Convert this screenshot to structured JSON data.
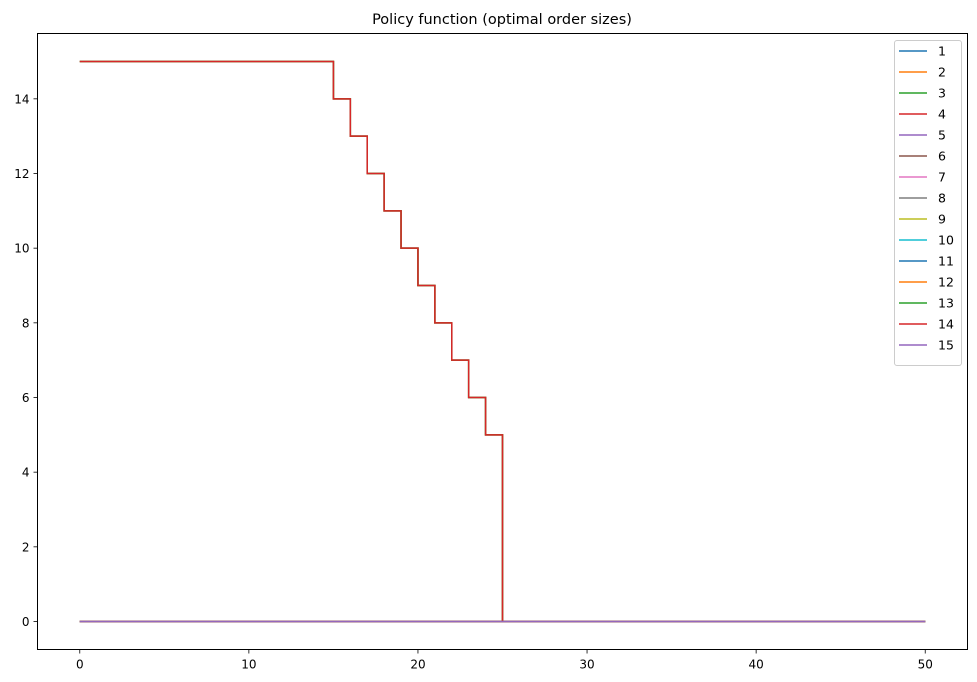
{
  "chart_data": {
    "type": "line",
    "title": "Policy function (optimal order sizes)",
    "xlabel": "",
    "ylabel": "",
    "xlim": [
      -2.5,
      52.5
    ],
    "ylim": [
      -0.75,
      15.75
    ],
    "xticks": [
      0,
      10,
      20,
      30,
      40,
      50
    ],
    "yticks": [
      0,
      2,
      4,
      6,
      8,
      10,
      12,
      14
    ],
    "step": "post",
    "grid": false,
    "legend_position": "top-right",
    "x": [
      0,
      1,
      2,
      3,
      4,
      5,
      6,
      7,
      8,
      9,
      10,
      11,
      12,
      13,
      14,
      15,
      16,
      17,
      18,
      19,
      20,
      21,
      22,
      23,
      24,
      25,
      26,
      27,
      28,
      29,
      30,
      31,
      32,
      33,
      34,
      35,
      36,
      37,
      38,
      39,
      40,
      41,
      42,
      43,
      44,
      45,
      46,
      47,
      48,
      49,
      50
    ],
    "series": [
      {
        "name": "1",
        "color": "#1f77b4",
        "values": [
          15,
          15,
          15,
          15,
          15,
          15,
          15,
          15,
          15,
          15,
          15,
          15,
          15,
          15,
          15,
          14,
          13,
          12,
          11,
          10,
          9,
          8,
          7,
          6,
          5,
          0,
          0,
          0,
          0,
          0,
          0,
          0,
          0,
          0,
          0,
          0,
          0,
          0,
          0,
          0,
          0,
          0,
          0,
          0,
          0,
          0,
          0,
          0,
          0,
          0,
          0
        ]
      },
      {
        "name": "2",
        "color": "#ff7f0e",
        "values": [
          15,
          15,
          15,
          15,
          15,
          15,
          15,
          15,
          15,
          15,
          15,
          15,
          15,
          15,
          15,
          14,
          13,
          12,
          11,
          10,
          9,
          8,
          7,
          6,
          5,
          0,
          0,
          0,
          0,
          0,
          0,
          0,
          0,
          0,
          0,
          0,
          0,
          0,
          0,
          0,
          0,
          0,
          0,
          0,
          0,
          0,
          0,
          0,
          0,
          0,
          0
        ]
      },
      {
        "name": "3",
        "color": "#2ca02c",
        "values": [
          15,
          15,
          15,
          15,
          15,
          15,
          15,
          15,
          15,
          15,
          15,
          15,
          15,
          15,
          15,
          14,
          13,
          12,
          11,
          10,
          9,
          8,
          7,
          6,
          5,
          0,
          0,
          0,
          0,
          0,
          0,
          0,
          0,
          0,
          0,
          0,
          0,
          0,
          0,
          0,
          0,
          0,
          0,
          0,
          0,
          0,
          0,
          0,
          0,
          0,
          0
        ]
      },
      {
        "name": "4",
        "color": "#d62728",
        "values": [
          15,
          15,
          15,
          15,
          15,
          15,
          15,
          15,
          15,
          15,
          15,
          15,
          15,
          15,
          15,
          14,
          13,
          12,
          11,
          10,
          9,
          8,
          7,
          6,
          5,
          0,
          0,
          0,
          0,
          0,
          0,
          0,
          0,
          0,
          0,
          0,
          0,
          0,
          0,
          0,
          0,
          0,
          0,
          0,
          0,
          0,
          0,
          0,
          0,
          0,
          0
        ]
      },
      {
        "name": "5",
        "color": "#9467bd",
        "values": [
          0,
          0,
          0,
          0,
          0,
          0,
          0,
          0,
          0,
          0,
          0,
          0,
          0,
          0,
          0,
          0,
          0,
          0,
          0,
          0,
          0,
          0,
          0,
          0,
          0,
          0,
          0,
          0,
          0,
          0,
          0,
          0,
          0,
          0,
          0,
          0,
          0,
          0,
          0,
          0,
          0,
          0,
          0,
          0,
          0,
          0,
          0,
          0,
          0,
          0,
          0
        ]
      },
      {
        "name": "6",
        "color": "#8c564b",
        "values": [
          0,
          0,
          0,
          0,
          0,
          0,
          0,
          0,
          0,
          0,
          0,
          0,
          0,
          0,
          0,
          0,
          0,
          0,
          0,
          0,
          0,
          0,
          0,
          0,
          0,
          0,
          0,
          0,
          0,
          0,
          0,
          0,
          0,
          0,
          0,
          0,
          0,
          0,
          0,
          0,
          0,
          0,
          0,
          0,
          0,
          0,
          0,
          0,
          0,
          0,
          0
        ]
      },
      {
        "name": "7",
        "color": "#e377c2",
        "values": [
          0,
          0,
          0,
          0,
          0,
          0,
          0,
          0,
          0,
          0,
          0,
          0,
          0,
          0,
          0,
          0,
          0,
          0,
          0,
          0,
          0,
          0,
          0,
          0,
          0,
          0,
          0,
          0,
          0,
          0,
          0,
          0,
          0,
          0,
          0,
          0,
          0,
          0,
          0,
          0,
          0,
          0,
          0,
          0,
          0,
          0,
          0,
          0,
          0,
          0,
          0
        ]
      },
      {
        "name": "8",
        "color": "#7f7f7f",
        "values": [
          0,
          0,
          0,
          0,
          0,
          0,
          0,
          0,
          0,
          0,
          0,
          0,
          0,
          0,
          0,
          0,
          0,
          0,
          0,
          0,
          0,
          0,
          0,
          0,
          0,
          0,
          0,
          0,
          0,
          0,
          0,
          0,
          0,
          0,
          0,
          0,
          0,
          0,
          0,
          0,
          0,
          0,
          0,
          0,
          0,
          0,
          0,
          0,
          0,
          0,
          0
        ]
      },
      {
        "name": "9",
        "color": "#bcbd22",
        "values": [
          0,
          0,
          0,
          0,
          0,
          0,
          0,
          0,
          0,
          0,
          0,
          0,
          0,
          0,
          0,
          0,
          0,
          0,
          0,
          0,
          0,
          0,
          0,
          0,
          0,
          0,
          0,
          0,
          0,
          0,
          0,
          0,
          0,
          0,
          0,
          0,
          0,
          0,
          0,
          0,
          0,
          0,
          0,
          0,
          0,
          0,
          0,
          0,
          0,
          0,
          0
        ]
      },
      {
        "name": "10",
        "color": "#17becf",
        "values": [
          0,
          0,
          0,
          0,
          0,
          0,
          0,
          0,
          0,
          0,
          0,
          0,
          0,
          0,
          0,
          0,
          0,
          0,
          0,
          0,
          0,
          0,
          0,
          0,
          0,
          0,
          0,
          0,
          0,
          0,
          0,
          0,
          0,
          0,
          0,
          0,
          0,
          0,
          0,
          0,
          0,
          0,
          0,
          0,
          0,
          0,
          0,
          0,
          0,
          0,
          0
        ]
      },
      {
        "name": "11",
        "color": "#1f77b4",
        "values": [
          0,
          0,
          0,
          0,
          0,
          0,
          0,
          0,
          0,
          0,
          0,
          0,
          0,
          0,
          0,
          0,
          0,
          0,
          0,
          0,
          0,
          0,
          0,
          0,
          0,
          0,
          0,
          0,
          0,
          0,
          0,
          0,
          0,
          0,
          0,
          0,
          0,
          0,
          0,
          0,
          0,
          0,
          0,
          0,
          0,
          0,
          0,
          0,
          0,
          0,
          0
        ]
      },
      {
        "name": "12",
        "color": "#ff7f0e",
        "values": [
          0,
          0,
          0,
          0,
          0,
          0,
          0,
          0,
          0,
          0,
          0,
          0,
          0,
          0,
          0,
          0,
          0,
          0,
          0,
          0,
          0,
          0,
          0,
          0,
          0,
          0,
          0,
          0,
          0,
          0,
          0,
          0,
          0,
          0,
          0,
          0,
          0,
          0,
          0,
          0,
          0,
          0,
          0,
          0,
          0,
          0,
          0,
          0,
          0,
          0,
          0
        ]
      },
      {
        "name": "13",
        "color": "#2ca02c",
        "values": [
          0,
          0,
          0,
          0,
          0,
          0,
          0,
          0,
          0,
          0,
          0,
          0,
          0,
          0,
          0,
          0,
          0,
          0,
          0,
          0,
          0,
          0,
          0,
          0,
          0,
          0,
          0,
          0,
          0,
          0,
          0,
          0,
          0,
          0,
          0,
          0,
          0,
          0,
          0,
          0,
          0,
          0,
          0,
          0,
          0,
          0,
          0,
          0,
          0,
          0,
          0
        ]
      },
      {
        "name": "14",
        "color": "#d62728",
        "values": [
          0,
          0,
          0,
          0,
          0,
          0,
          0,
          0,
          0,
          0,
          0,
          0,
          0,
          0,
          0,
          0,
          0,
          0,
          0,
          0,
          0,
          0,
          0,
          0,
          0,
          0,
          0,
          0,
          0,
          0,
          0,
          0,
          0,
          0,
          0,
          0,
          0,
          0,
          0,
          0,
          0,
          0,
          0,
          0,
          0,
          0,
          0,
          0,
          0,
          0,
          0
        ]
      },
      {
        "name": "15",
        "color": "#9467bd",
        "values": [
          0,
          0,
          0,
          0,
          0,
          0,
          0,
          0,
          0,
          0,
          0,
          0,
          0,
          0,
          0,
          0,
          0,
          0,
          0,
          0,
          0,
          0,
          0,
          0,
          0,
          0,
          0,
          0,
          0,
          0,
          0,
          0,
          0,
          0,
          0,
          0,
          0,
          0,
          0,
          0,
          0,
          0,
          0,
          0,
          0,
          0,
          0,
          0,
          0,
          0,
          0
        ]
      }
    ]
  }
}
